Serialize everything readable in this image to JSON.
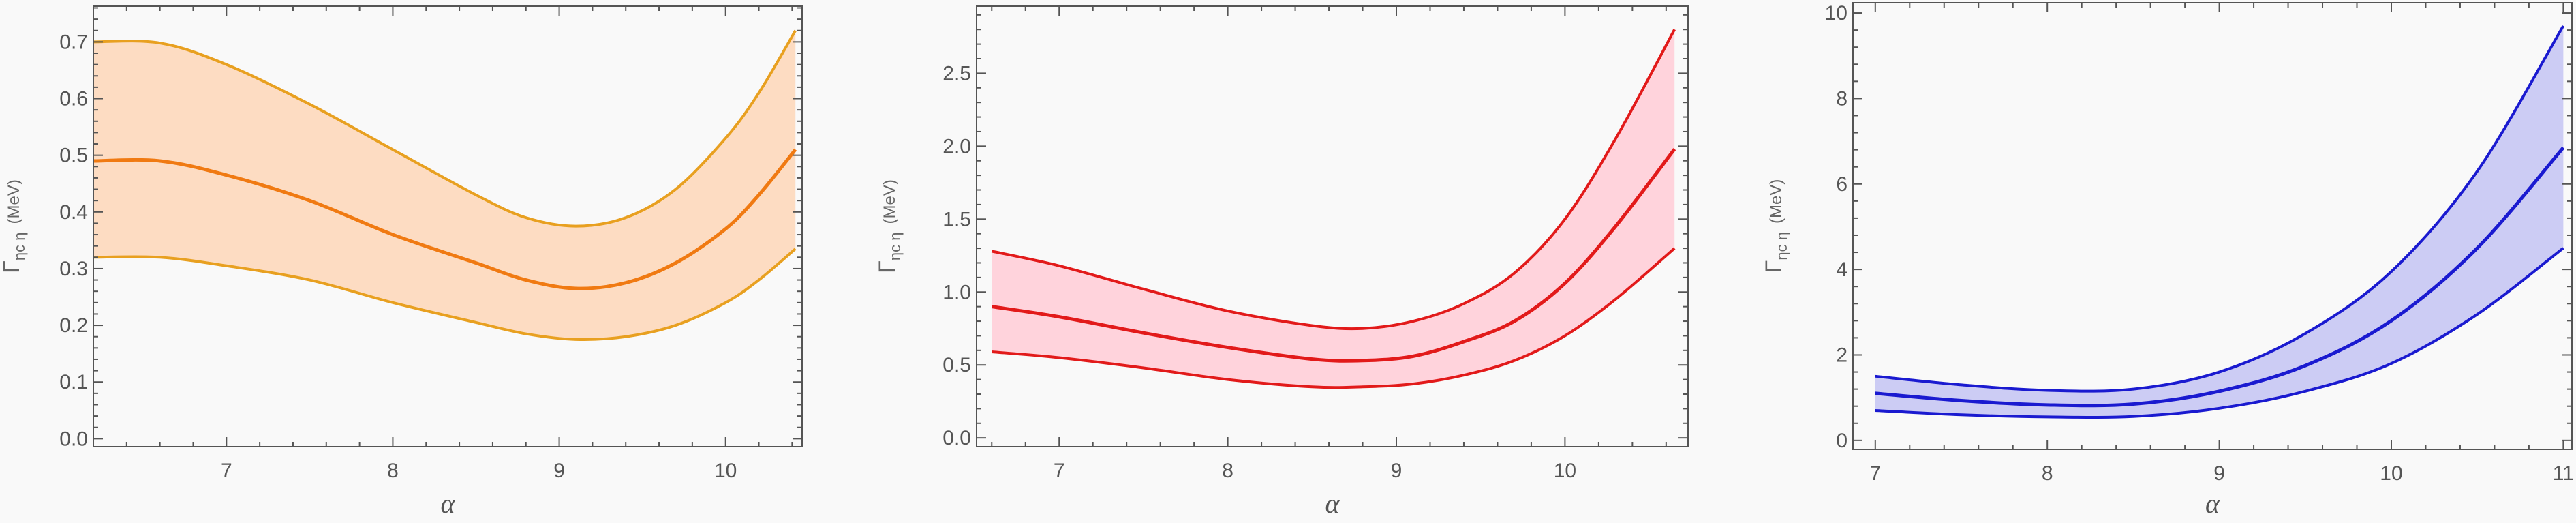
{
  "chart_data": [
    {
      "type": "area",
      "xlabel": "α",
      "ylabel": "Γηc η (MeV)",
      "ylabel_parts": {
        "symbol": "Γ",
        "sub": "ηc η",
        "unit": "(MeV)"
      },
      "xlim": [
        6.2,
        10.46
      ],
      "ylim": [
        -0.014,
        0.763
      ],
      "xticks": [
        "7",
        "8",
        "9",
        "10"
      ],
      "xtick_values": [
        7,
        8,
        9,
        10
      ],
      "yticks": [
        "0.0",
        "0.1",
        "0.2",
        "0.3",
        "0.4",
        "0.5",
        "0.6",
        "0.7"
      ],
      "ytick_values": [
        0,
        0.1,
        0.2,
        0.3,
        0.4,
        0.5,
        0.6,
        0.7
      ],
      "line_color": "#f07a12",
      "band_line_color": "#e8a020",
      "fill_color": "#fddcc2",
      "x": [
        6.2,
        6.6,
        7.0,
        7.5,
        8.0,
        8.5,
        8.8,
        9.1,
        9.4,
        9.7,
        10.0,
        10.2,
        10.42
      ],
      "series": [
        {
          "role": "upper",
          "values": [
            0.7,
            0.698,
            0.66,
            0.59,
            0.51,
            0.43,
            0.39,
            0.375,
            0.39,
            0.44,
            0.53,
            0.61,
            0.72
          ]
        },
        {
          "role": "central",
          "values": [
            0.49,
            0.49,
            0.465,
            0.42,
            0.36,
            0.31,
            0.28,
            0.265,
            0.275,
            0.31,
            0.37,
            0.43,
            0.51
          ]
        },
        {
          "role": "lower",
          "values": [
            0.32,
            0.32,
            0.305,
            0.28,
            0.24,
            0.205,
            0.185,
            0.175,
            0.18,
            0.2,
            0.24,
            0.28,
            0.335
          ]
        }
      ]
    },
    {
      "type": "area",
      "xlabel": "α",
      "ylabel": "Γηc η (MeV)",
      "ylabel_parts": {
        "symbol": "Γ",
        "sub": "ηc η",
        "unit": "(MeV)"
      },
      "xlim": [
        6.51,
        10.73
      ],
      "ylim": [
        -0.06,
        2.96
      ],
      "xticks": [
        "7",
        "8",
        "9",
        "10"
      ],
      "xtick_values": [
        7,
        8,
        9,
        10
      ],
      "yticks": [
        "0.0",
        "0.5",
        "1.0",
        "1.5",
        "2.0",
        "2.5"
      ],
      "ytick_values": [
        0,
        0.5,
        1.0,
        1.5,
        2.0,
        2.5
      ],
      "line_color": "#e21a1a",
      "band_line_color": "#e21a1a",
      "fill_color": "#ffd3dc",
      "x": [
        6.6,
        7.0,
        7.5,
        8.0,
        8.5,
        8.8,
        9.1,
        9.4,
        9.7,
        10.0,
        10.3,
        10.65
      ],
      "series": [
        {
          "role": "upper",
          "values": [
            1.28,
            1.18,
            1.02,
            0.87,
            0.77,
            0.75,
            0.8,
            0.92,
            1.13,
            1.5,
            2.05,
            2.8
          ]
        },
        {
          "role": "central",
          "values": [
            0.9,
            0.83,
            0.72,
            0.62,
            0.54,
            0.53,
            0.56,
            0.66,
            0.8,
            1.06,
            1.45,
            1.98
          ]
        },
        {
          "role": "lower",
          "values": [
            0.59,
            0.55,
            0.48,
            0.4,
            0.35,
            0.35,
            0.37,
            0.43,
            0.53,
            0.7,
            0.95,
            1.3
          ]
        }
      ]
    },
    {
      "type": "area",
      "xlabel": "α",
      "ylabel": "Γηc η (MeV)",
      "ylabel_parts": {
        "symbol": "Γ",
        "sub": "ηc η",
        "unit": "(MeV)"
      },
      "xlim": [
        6.87,
        11.05
      ],
      "ylim": [
        -0.21,
        10.24
      ],
      "xticks": [
        "7",
        "8",
        "9",
        "10",
        "11"
      ],
      "xtick_values": [
        7,
        8,
        9,
        10,
        11
      ],
      "yticks": [
        "0",
        "2",
        "4",
        "6",
        "8",
        "10"
      ],
      "ytick_values": [
        0,
        2,
        4,
        6,
        8,
        10
      ],
      "line_color": "#1a1ad0",
      "band_line_color": "#1a1ad0",
      "fill_color": "#ccccf4",
      "x": [
        7.0,
        7.5,
        8.0,
        8.5,
        9.0,
        9.5,
        10.0,
        10.5,
        11.0
      ],
      "series": [
        {
          "role": "upper",
          "values": [
            1.5,
            1.3,
            1.17,
            1.2,
            1.6,
            2.5,
            3.95,
            6.3,
            9.7
          ]
        },
        {
          "role": "central",
          "values": [
            1.1,
            0.93,
            0.83,
            0.85,
            1.15,
            1.75,
            2.8,
            4.5,
            6.85
          ]
        },
        {
          "role": "lower",
          "values": [
            0.7,
            0.6,
            0.55,
            0.56,
            0.75,
            1.15,
            1.8,
            2.95,
            4.5
          ]
        }
      ]
    }
  ]
}
